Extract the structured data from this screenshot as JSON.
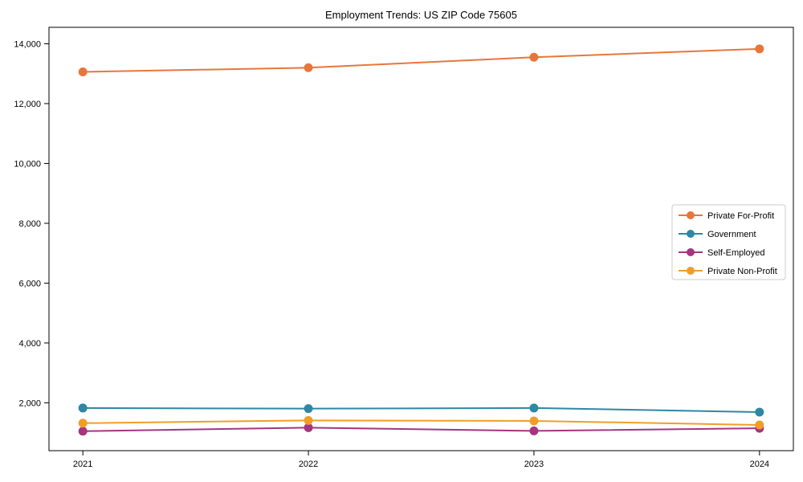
{
  "figure": {
    "background_color": "#FFFFFF",
    "axis_color": "#000000",
    "tick_label_color": "#000000",
    "legend_border_color": "#CCCCCC",
    "legend_background": "#FFFFFF"
  },
  "chart_data": {
    "type": "line",
    "title": "Employment Trends: US ZIP Code 75605",
    "xlabel": "",
    "ylabel": "",
    "grid": false,
    "legend_position": "center right",
    "categories": [
      "2021",
      "2022",
      "2023",
      "2024"
    ],
    "series": [
      {
        "name": "Private For-Profit",
        "color": "#E8763B",
        "values": [
          13060,
          13200,
          13550,
          13830
        ]
      },
      {
        "name": "Government",
        "color": "#2E87A5",
        "values": [
          1825,
          1805,
          1825,
          1690
        ]
      },
      {
        "name": "Self-Employed",
        "color": "#A4357F",
        "values": [
          1050,
          1170,
          1060,
          1150
        ]
      },
      {
        "name": "Private Non-Profit",
        "color": "#F09E28",
        "values": [
          1320,
          1410,
          1395,
          1260
        ]
      }
    ],
    "ylim": [
      400,
      14550
    ],
    "yticks": [
      2000,
      4000,
      6000,
      8000,
      10000,
      12000,
      14000
    ],
    "ytick_labels": [
      "2,000",
      "4,000",
      "6,000",
      "8,000",
      "10,000",
      "12,000",
      "14,000"
    ]
  }
}
